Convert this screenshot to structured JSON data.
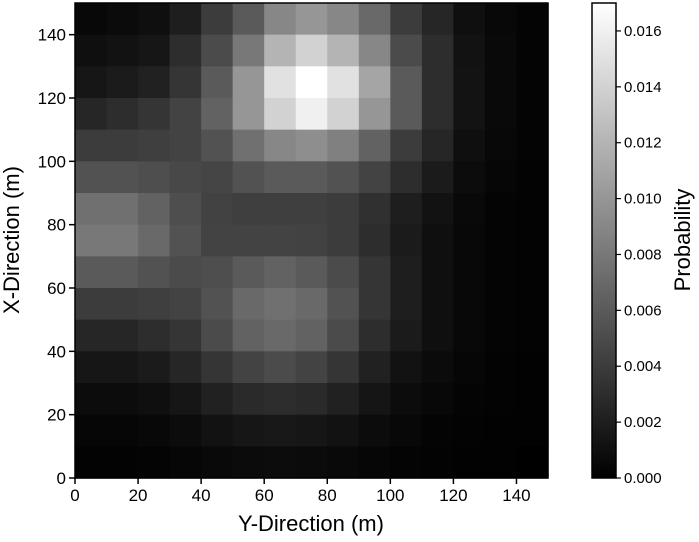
{
  "chart_data": {
    "type": "heatmap",
    "title": "",
    "xlabel": "Y-Direction (m)",
    "ylabel": "X-Direction (m)",
    "colorbar_label": "Probability",
    "x_range": [
      0,
      150
    ],
    "y_range": [
      0,
      150
    ],
    "cell_size": 10,
    "x_ticks": [
      0,
      20,
      40,
      60,
      80,
      100,
      120,
      140
    ],
    "y_ticks": [
      0,
      20,
      40,
      60,
      80,
      100,
      120,
      140
    ],
    "colorbar_range": [
      0,
      0.017
    ],
    "colorbar_ticks": [
      "0.000",
      "0.002",
      "0.004",
      "0.006",
      "0.008",
      "0.010",
      "0.012",
      "0.014",
      "0.016"
    ],
    "colormap": "grayscale (black = 0.000, white = max)",
    "grid": false,
    "z_note": "rows ordered from y=140 (top) down to y=0 (bottom); each row lists x=0..140",
    "z": [
      [
        0.0005,
        0.0007,
        0.001,
        0.002,
        0.004,
        0.006,
        0.009,
        0.01,
        0.009,
        0.007,
        0.004,
        0.0025,
        0.001,
        0.0005,
        0.0003
      ],
      [
        0.001,
        0.0012,
        0.0015,
        0.003,
        0.005,
        0.008,
        0.012,
        0.014,
        0.012,
        0.009,
        0.005,
        0.003,
        0.0012,
        0.0006,
        0.0003
      ],
      [
        0.0015,
        0.0018,
        0.0022,
        0.0035,
        0.006,
        0.01,
        0.015,
        0.017,
        0.015,
        0.011,
        0.006,
        0.003,
        0.0013,
        0.0006,
        0.0003
      ],
      [
        0.0025,
        0.003,
        0.0035,
        0.0045,
        0.0065,
        0.01,
        0.014,
        0.016,
        0.014,
        0.01,
        0.006,
        0.003,
        0.0013,
        0.0006,
        0.0003
      ],
      [
        0.004,
        0.004,
        0.0042,
        0.0045,
        0.0055,
        0.0075,
        0.009,
        0.0095,
        0.0085,
        0.0065,
        0.004,
        0.0025,
        0.001,
        0.0005,
        0.0003
      ],
      [
        0.0055,
        0.0055,
        0.0052,
        0.0048,
        0.0046,
        0.0055,
        0.006,
        0.006,
        0.0055,
        0.0045,
        0.003,
        0.0018,
        0.0008,
        0.0004,
        0.0002
      ],
      [
        0.0075,
        0.0075,
        0.0065,
        0.0052,
        0.0044,
        0.0042,
        0.0042,
        0.0042,
        0.004,
        0.0032,
        0.002,
        0.0012,
        0.0006,
        0.0003,
        0.0002
      ],
      [
        0.008,
        0.008,
        0.007,
        0.0055,
        0.0045,
        0.0045,
        0.0045,
        0.0044,
        0.004,
        0.003,
        0.0018,
        0.001,
        0.0005,
        0.0003,
        0.0002
      ],
      [
        0.006,
        0.006,
        0.0055,
        0.005,
        0.0052,
        0.006,
        0.0065,
        0.006,
        0.005,
        0.0035,
        0.002,
        0.001,
        0.0005,
        0.0003,
        0.0002
      ],
      [
        0.004,
        0.004,
        0.0042,
        0.0045,
        0.0055,
        0.007,
        0.0075,
        0.007,
        0.0055,
        0.0035,
        0.002,
        0.001,
        0.0005,
        0.0003,
        0.0002
      ],
      [
        0.0025,
        0.0025,
        0.003,
        0.0035,
        0.005,
        0.0065,
        0.007,
        0.0065,
        0.005,
        0.003,
        0.0018,
        0.001,
        0.0005,
        0.0003,
        0.0002
      ],
      [
        0.0015,
        0.0015,
        0.0018,
        0.0025,
        0.0035,
        0.0045,
        0.005,
        0.0045,
        0.0035,
        0.0022,
        0.0012,
        0.0007,
        0.0004,
        0.0002,
        0.0001
      ],
      [
        0.0008,
        0.0008,
        0.001,
        0.0015,
        0.0022,
        0.0028,
        0.003,
        0.0028,
        0.0022,
        0.0014,
        0.0008,
        0.0005,
        0.0003,
        0.0002,
        0.0001
      ],
      [
        0.0004,
        0.0004,
        0.0005,
        0.0008,
        0.0012,
        0.0015,
        0.0016,
        0.0015,
        0.0012,
        0.0008,
        0.0005,
        0.0003,
        0.0002,
        0.0001,
        0.0001
      ],
      [
        0.0002,
        0.0002,
        0.0003,
        0.0004,
        0.0006,
        0.0007,
        0.0008,
        0.0007,
        0.0006,
        0.0004,
        0.0003,
        0.0002,
        0.0001,
        0.0001,
        0.0
      ]
    ]
  }
}
